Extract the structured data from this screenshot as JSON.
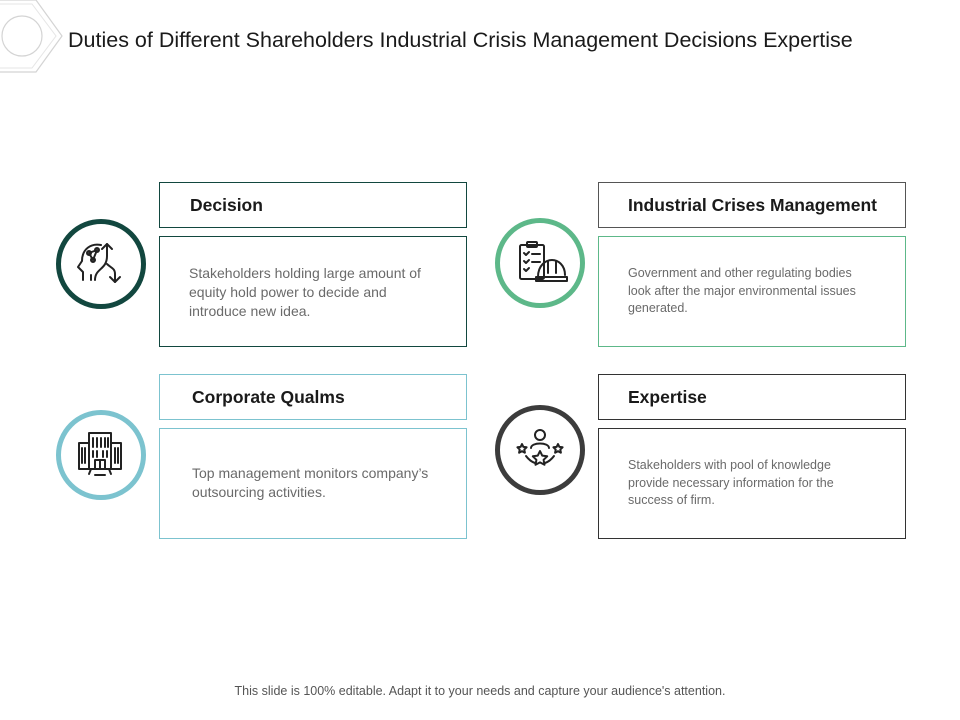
{
  "slide": {
    "title": "Duties of Different Shareholders Industrial Crisis Management Decisions Expertise",
    "footer": "This slide is 100% editable. Adapt it to your needs and capture your audience's attention."
  },
  "colors": {
    "dark_teal": "#12473f",
    "green": "#5db889",
    "light_blue": "#7cc3cf",
    "dark_gray": "#3c3c3c"
  },
  "cards": [
    {
      "heading": "Decision",
      "body": "Stakeholders holding large amount of equity hold power to decide and introduce new idea.",
      "icon": "decision-arrows-head-icon"
    },
    {
      "heading": "Industrial Crises Management",
      "body": "Government and other regulating bodies look after the major environmental issues generated.",
      "icon": "clipboard-hardhat-icon"
    },
    {
      "heading": "Corporate Qualms",
      "body": "Top management monitors company’s outsourcing activities.",
      "icon": "office-building-icon"
    },
    {
      "heading": "Expertise",
      "body": "Stakeholders with pool of knowledge provide necessary information for the success of firm.",
      "icon": "person-stars-icon"
    }
  ]
}
